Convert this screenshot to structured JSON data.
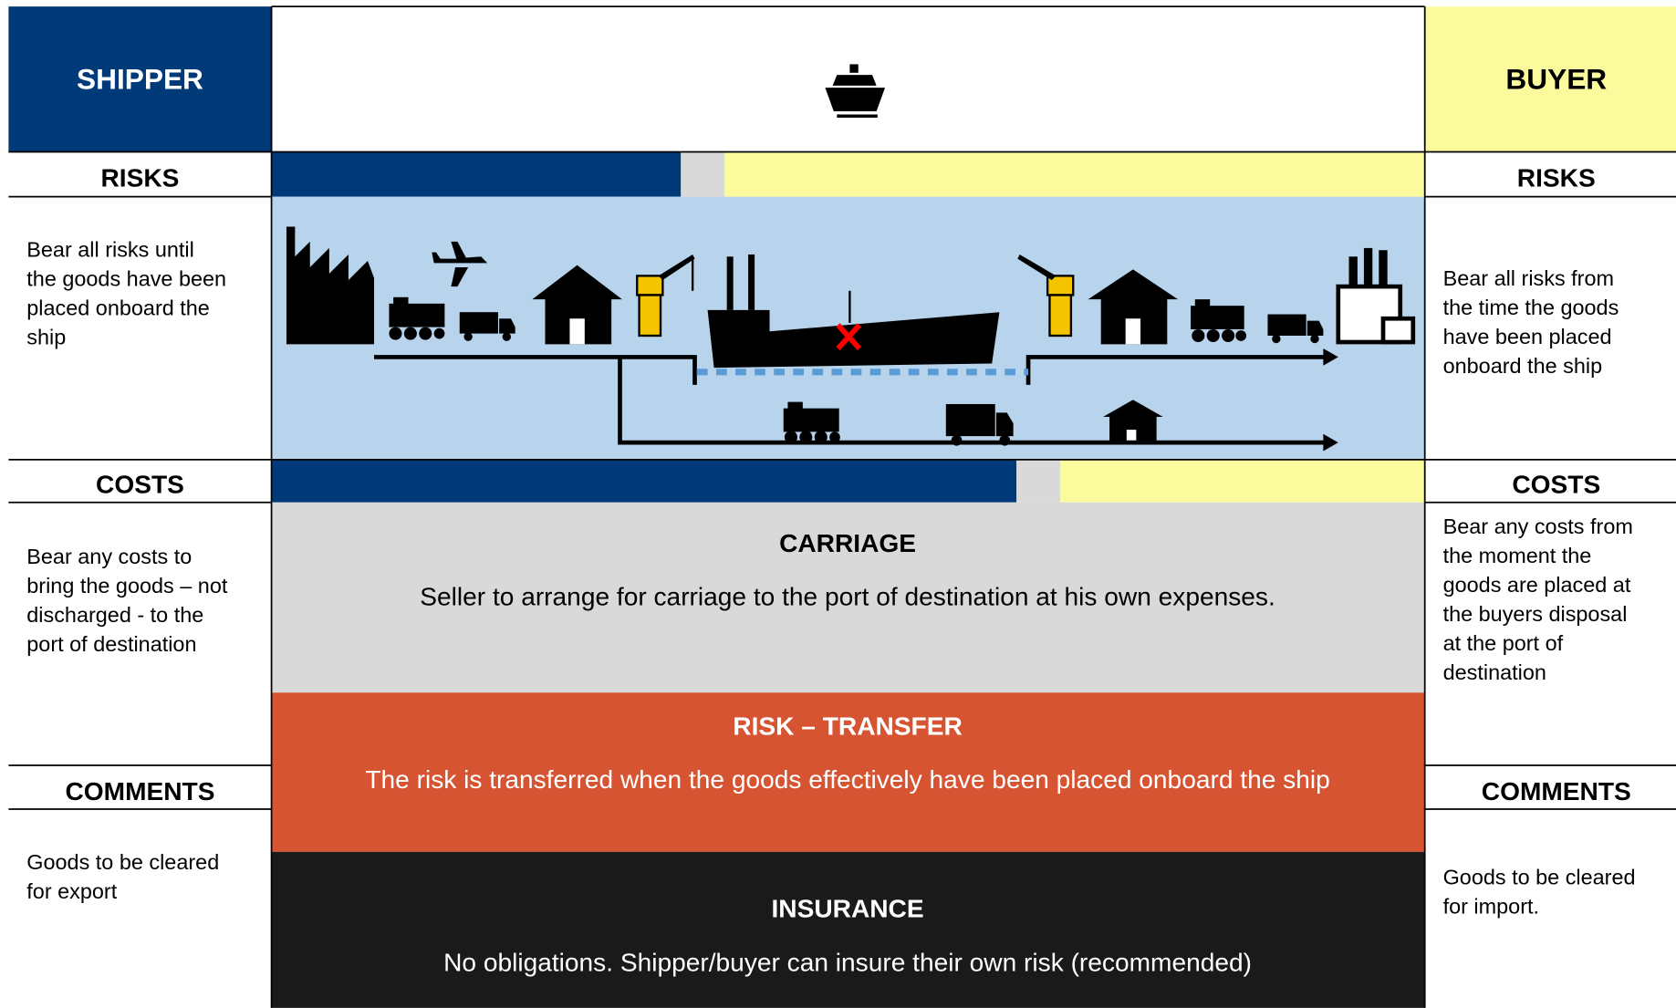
{
  "shipper": {
    "title": "SHIPPER",
    "risks_label": "RISKS",
    "risks_text": [
      "Bear all risks until",
      "the goods have been",
      "placed onboard the",
      "ship"
    ],
    "costs_label": "COSTS",
    "costs_text": [
      "Bear any costs to",
      "bring the goods – not",
      "discharged - to the",
      "port of destination"
    ],
    "comments_label": "COMMENTS",
    "comments_text": [
      "Goods to be cleared",
      "for export"
    ]
  },
  "buyer": {
    "title": "BUYER",
    "risks_label": "RISKS",
    "risks_text": [
      "Bear all risks from",
      "the time the goods",
      "have been placed",
      "onboard the ship"
    ],
    "costs_label": "COSTS",
    "costs_text": [
      "Bear any costs from",
      "the moment the",
      "goods are placed at",
      "the buyers disposal",
      "at the port of",
      "destination"
    ],
    "comments_label": "COMMENTS",
    "comments_text": [
      "Goods to be cleared",
      "for import."
    ]
  },
  "carriage": {
    "title": "CARRIAGE",
    "text": "Seller to arrange for carriage to the port of destination at his own expenses."
  },
  "risk_transfer": {
    "title": "RISK – TRANSFER",
    "text": "The risk is transferred when the goods effectively have been placed onboard the ship"
  },
  "insurance": {
    "title": "INSURANCE",
    "text": "No obligations. Shipper/buyer can insure their own risk (recommended)"
  }
}
